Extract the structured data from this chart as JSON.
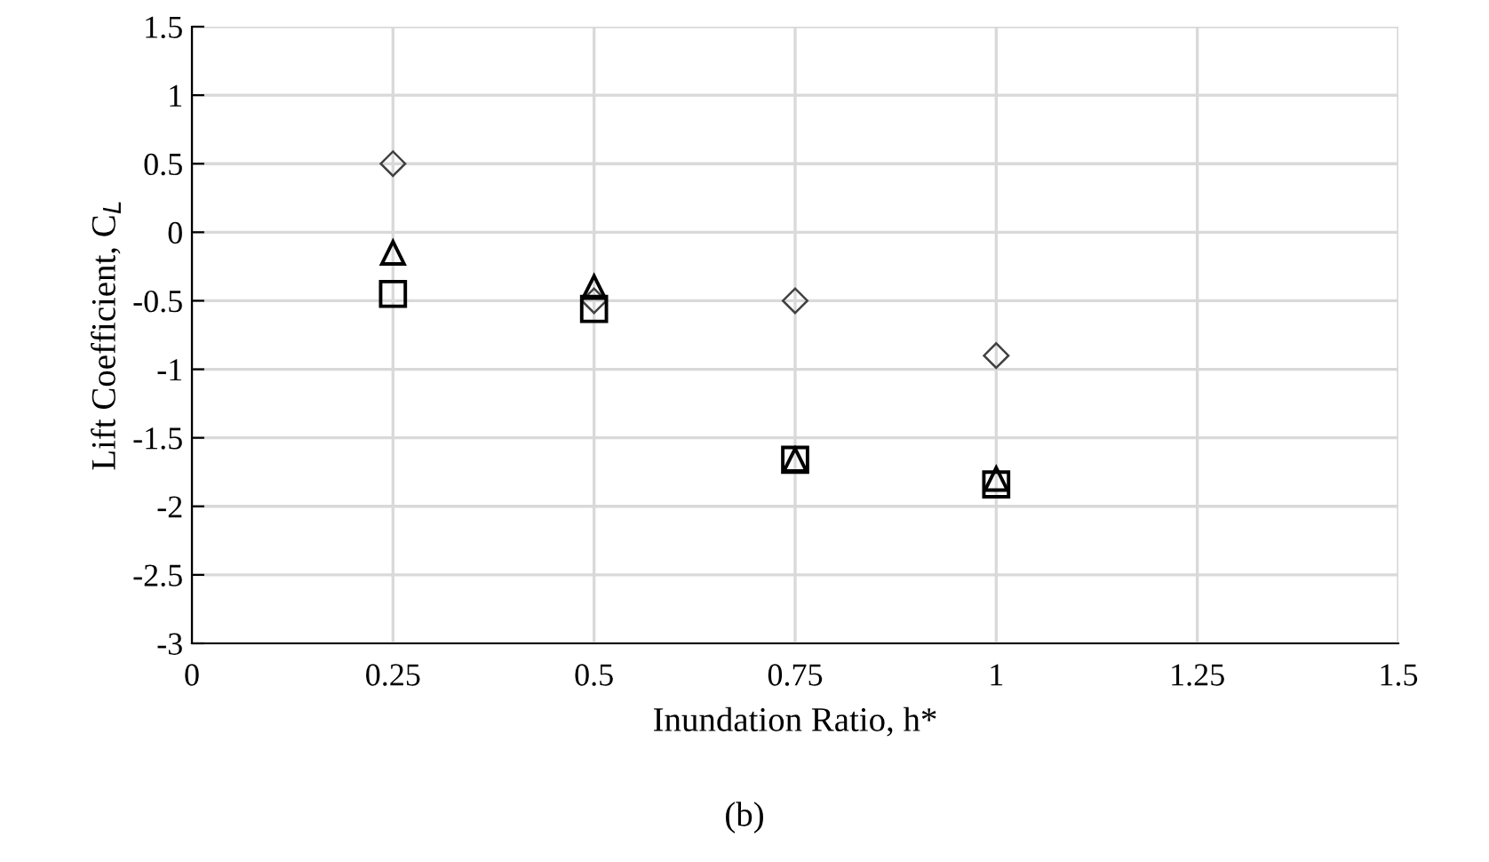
{
  "chart_data": {
    "type": "scatter",
    "xlabel": "Inundation Ratio, h*",
    "ylabel": "Lift Coefficient, C$_{L}$",
    "x": [
      0.25,
      0.5,
      0.75,
      1.0
    ],
    "series": [
      {
        "color": "#404040",
        "marker": "diamond",
        "values": [
          0.5,
          -0.5,
          -0.5,
          -0.9
        ]
      },
      {
        "color": "#000000",
        "marker": "triangle",
        "values": [
          -0.15,
          -0.4,
          -1.66,
          -1.8
        ]
      },
      {
        "color": "#000000",
        "marker": "square",
        "values": [
          -0.45,
          -0.56,
          -1.66,
          -1.84
        ]
      }
    ],
    "xlim": [
      0,
      1.5
    ],
    "xticks": [
      0,
      0.25,
      0.5,
      0.75,
      1,
      1.25,
      1.5
    ],
    "ylim": [
      -3,
      1.5
    ],
    "yticks": [
      -3,
      -2.5,
      -2,
      -1.5,
      -1,
      -0.5,
      0,
      0.5,
      1,
      1.5
    ],
    "grid": true,
    "legend": false,
    "annotations": [
      "(b)"
    ]
  }
}
